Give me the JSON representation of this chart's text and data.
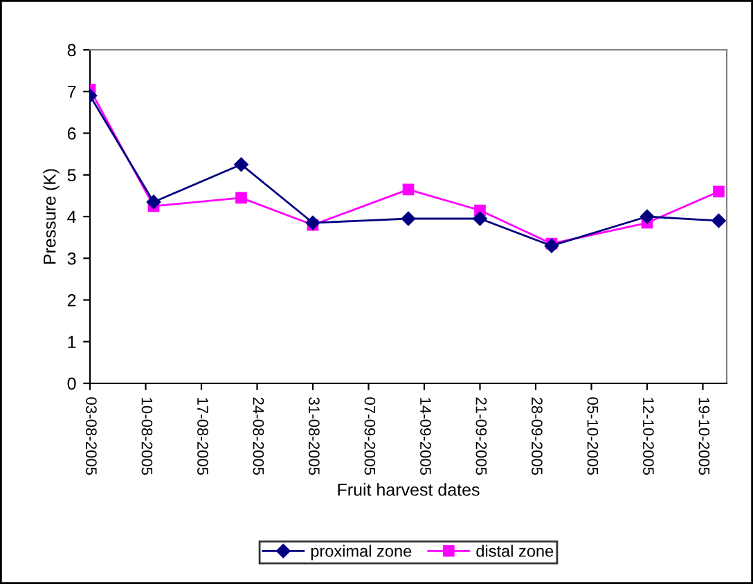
{
  "chart_data": {
    "type": "line",
    "xlabel": "Fruit harvest dates",
    "ylabel": "Pressure (K)",
    "x": [
      "2005-08-03",
      "2005-08-11",
      "2005-08-22",
      "2005-08-31",
      "2005-09-12",
      "2005-09-21",
      "2005-09-30",
      "2005-10-12",
      "2005-10-21"
    ],
    "series": [
      {
        "name": "proximal zone",
        "color": "#000080",
        "marker": "diamond",
        "values": [
          6.9,
          4.35,
          5.25,
          3.85,
          3.95,
          3.95,
          3.3,
          4.0,
          3.9
        ]
      },
      {
        "name": "distal zone",
        "color": "#ff00ff",
        "marker": "square",
        "values": [
          7.05,
          4.25,
          4.45,
          3.8,
          4.65,
          4.15,
          3.35,
          3.85,
          4.6
        ]
      }
    ],
    "xlim": [
      "2005-08-03",
      "2005-10-22"
    ],
    "xticks": [
      {
        "value": "2005-08-03",
        "label": "03-08-2005"
      },
      {
        "value": "2005-08-10",
        "label": "10-08-2005"
      },
      {
        "value": "2005-08-17",
        "label": "17-08-2005"
      },
      {
        "value": "2005-08-24",
        "label": "24-08-2005"
      },
      {
        "value": "2005-08-31",
        "label": "31-08-2005"
      },
      {
        "value": "2005-09-07",
        "label": "07-09-2005"
      },
      {
        "value": "2005-09-14",
        "label": "14-09-2005"
      },
      {
        "value": "2005-09-21",
        "label": "21-09-2005"
      },
      {
        "value": "2005-09-28",
        "label": "28-09-2005"
      },
      {
        "value": "2005-10-05",
        "label": "05-10-2005"
      },
      {
        "value": "2005-10-12",
        "label": "12-10-2005"
      },
      {
        "value": "2005-10-19",
        "label": "19-10-2005"
      }
    ],
    "ylim": [
      0,
      8
    ],
    "yticks": [
      0,
      1,
      2,
      3,
      4,
      5,
      6,
      7,
      8
    ],
    "grid": false,
    "legend": "bottom",
    "line_style": "solid"
  }
}
